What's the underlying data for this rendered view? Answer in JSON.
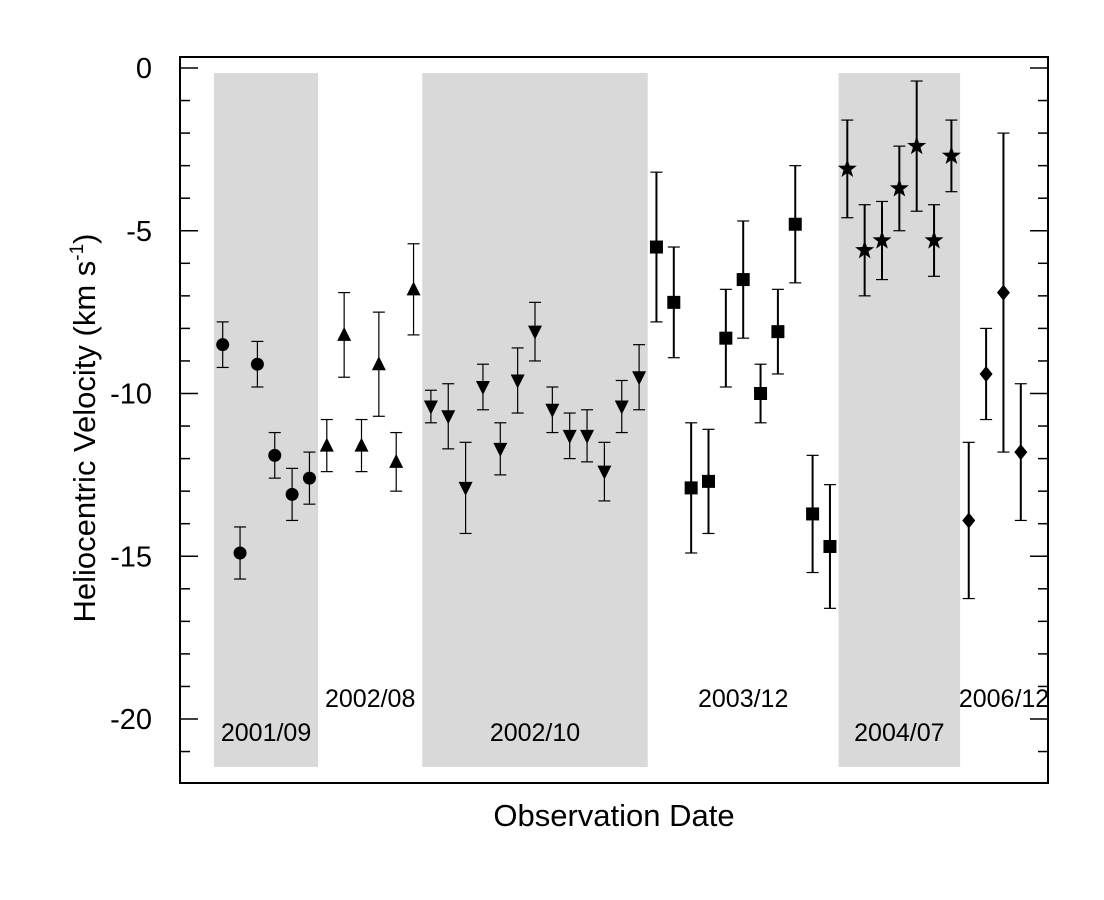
{
  "chart_data": {
    "type": "scatter",
    "title": "",
    "xlabel": "Observation Date",
    "ylabel": "Heliocentric Velocity (km s",
    "ylabel_sup": "-1",
    "ylabel_close": ")",
    "xlim": [
      0,
      50
    ],
    "ylim": [
      -21.5,
      0
    ],
    "yticks": [
      0,
      -5,
      -10,
      -15,
      -20
    ],
    "ytick_labels": [
      "0",
      "-5",
      "-10",
      "-15",
      "-20"
    ],
    "grid": false,
    "shaded_periods": [
      {
        "label": "2001/09",
        "start": 1.5,
        "end": 7.5,
        "shaded": true
      },
      {
        "label": "2002/08",
        "start": 7.5,
        "end": 13.5,
        "shaded": false
      },
      {
        "label": "2002/10",
        "start": 13.5,
        "end": 26.5,
        "shaded": true
      },
      {
        "label": "2003/12",
        "start": 26.5,
        "end": 37.5,
        "shaded": false
      },
      {
        "label": "2004/07",
        "start": 37.5,
        "end": 44.5,
        "shaded": true
      },
      {
        "label": "2006/12",
        "start": 44.5,
        "end": 50,
        "shaded": false
      }
    ],
    "series": [
      {
        "name": "2001/09",
        "marker": "circle",
        "x": [
          2,
          3,
          4,
          5,
          6,
          7
        ],
        "y": [
          -8.5,
          -14.9,
          -9.1,
          -11.9,
          -13.1,
          -12.6
        ],
        "err": [
          0.7,
          0.8,
          0.7,
          0.7,
          0.8,
          0.8
        ]
      },
      {
        "name": "2002/08",
        "marker": "triangle-up",
        "x": [
          8,
          9,
          10,
          11,
          12,
          13
        ],
        "y": [
          -11.6,
          -8.2,
          -11.6,
          -9.1,
          -12.1,
          -6.8
        ],
        "err": [
          0.8,
          1.3,
          0.8,
          1.6,
          0.9,
          1.4
        ]
      },
      {
        "name": "2002/10",
        "marker": "triangle-down",
        "x": [
          14,
          15,
          16,
          17,
          18,
          19,
          20,
          21,
          22,
          23,
          24,
          25,
          26
        ],
        "y": [
          -10.4,
          -10.7,
          -12.9,
          -9.8,
          -11.7,
          -9.6,
          -8.1,
          -10.5,
          -11.3,
          -11.3,
          -12.4,
          -10.4,
          -9.5
        ],
        "err": [
          0.5,
          1.0,
          1.4,
          0.7,
          0.8,
          1.0,
          0.9,
          0.7,
          0.7,
          0.8,
          0.9,
          0.8,
          1.0
        ]
      },
      {
        "name": "2003/12",
        "marker": "square",
        "x": [
          27,
          28,
          29,
          30,
          31,
          32,
          33,
          34,
          35,
          36,
          37
        ],
        "y": [
          -5.5,
          -7.2,
          -12.9,
          -12.7,
          -8.3,
          -6.5,
          -10.0,
          -8.1,
          -4.8,
          -13.7,
          -14.7
        ],
        "err": [
          2.3,
          1.7,
          2.0,
          1.6,
          1.5,
          1.8,
          0.9,
          1.3,
          1.8,
          1.8,
          1.9
        ]
      },
      {
        "name": "2004/07",
        "marker": "star",
        "x": [
          38,
          39,
          40,
          41,
          42,
          43,
          44
        ],
        "y": [
          -3.1,
          -5.6,
          -5.3,
          -3.7,
          -2.4,
          -5.3,
          -2.7
        ],
        "err": [
          1.5,
          1.4,
          1.2,
          1.3,
          2.0,
          1.1,
          1.1
        ]
      },
      {
        "name": "2006/12",
        "marker": "diamond",
        "x": [
          45,
          46,
          47,
          48
        ],
        "y": [
          -13.9,
          -9.4,
          -6.9,
          -11.8
        ],
        "err": [
          2.4,
          1.4,
          4.9,
          2.1
        ]
      }
    ]
  }
}
